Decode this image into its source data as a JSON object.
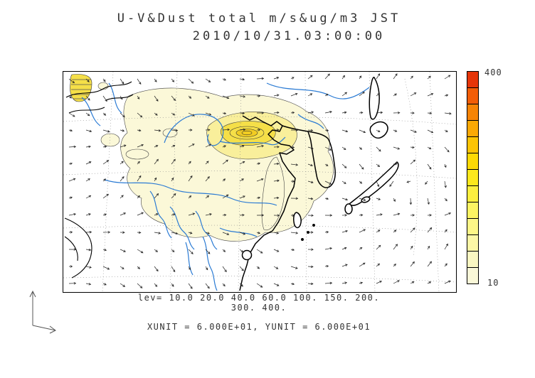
{
  "title": {
    "line1": "U-V&Dust total m/s&ug/m3 JST",
    "line2": "2010/10/31.03:00:00"
  },
  "colorbar": {
    "max_label": "400",
    "min_label": "10",
    "colors": [
      "#e63509",
      "#f25d07",
      "#f78405",
      "#fba905",
      "#fdc404",
      "#fdd904",
      "#fde81c",
      "#fdef3f",
      "#fdf463",
      "#fdf687",
      "#fcf7a6",
      "#fbf8c2",
      "#faf8d8"
    ]
  },
  "legend": {
    "levels_line1": "lev= 10.0 20.0 40.0 60.0 100. 150. 200.",
    "levels_line2": "300. 400.",
    "units_line": "XUNIT = 6.000E+01, YUNIT = 6.000E+01"
  },
  "chart_data": {
    "type": "heatmap",
    "title": "U-V&Dust total m/s&ug/m3 JST",
    "timestamp_jst": "2010/10/31.03:00:00",
    "field": "Dust total concentration",
    "field_units": "ug/m3",
    "vector_overlay": "U-V wind vectors",
    "vector_units": "m/s",
    "contour_levels": [
      10.0,
      20.0,
      40.0,
      60.0,
      100.0,
      150.0,
      200.0,
      300.0,
      400.0
    ],
    "colorbar_range": [
      10,
      400
    ],
    "colorbar_top_label": "400",
    "colorbar_bottom_label": "10",
    "xunit": "6.000E+01",
    "yunit": "6.000E+01",
    "region": "East Asia (China, Korean peninsula, Japan)",
    "legend_position": "right",
    "notes": "Filled yellow-orange contours of dust concentration over coastline map with wind vector arrows; maximum shading core over northern China"
  }
}
